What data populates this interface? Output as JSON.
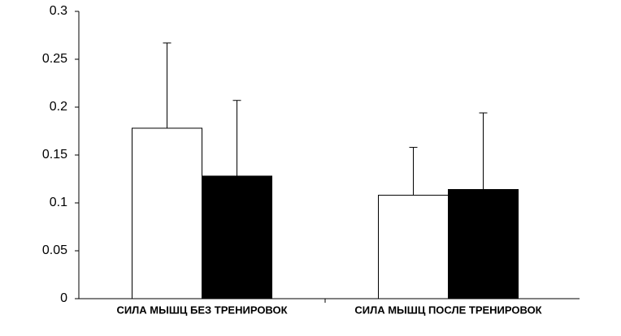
{
  "chart_data": {
    "type": "bar",
    "categories": [
      "СИЛА МЫШЦ БЕЗ ТРЕНИРОВОК",
      "СИЛА МЫШЦ ПОСЛЕ ТРЕНИРОВОК"
    ],
    "series": [
      {
        "color": "#ffffff",
        "values": [
          0.178,
          0.108
        ],
        "errors": [
          0.089,
          0.05
        ]
      },
      {
        "color": "#000000",
        "values": [
          0.128,
          0.114
        ],
        "errors": [
          0.079,
          0.08
        ]
      }
    ],
    "ylim": [
      0,
      0.3
    ],
    "yticks": [
      0,
      0.05,
      0.1,
      0.15,
      0.2,
      0.25,
      0.3
    ],
    "grid": false
  }
}
